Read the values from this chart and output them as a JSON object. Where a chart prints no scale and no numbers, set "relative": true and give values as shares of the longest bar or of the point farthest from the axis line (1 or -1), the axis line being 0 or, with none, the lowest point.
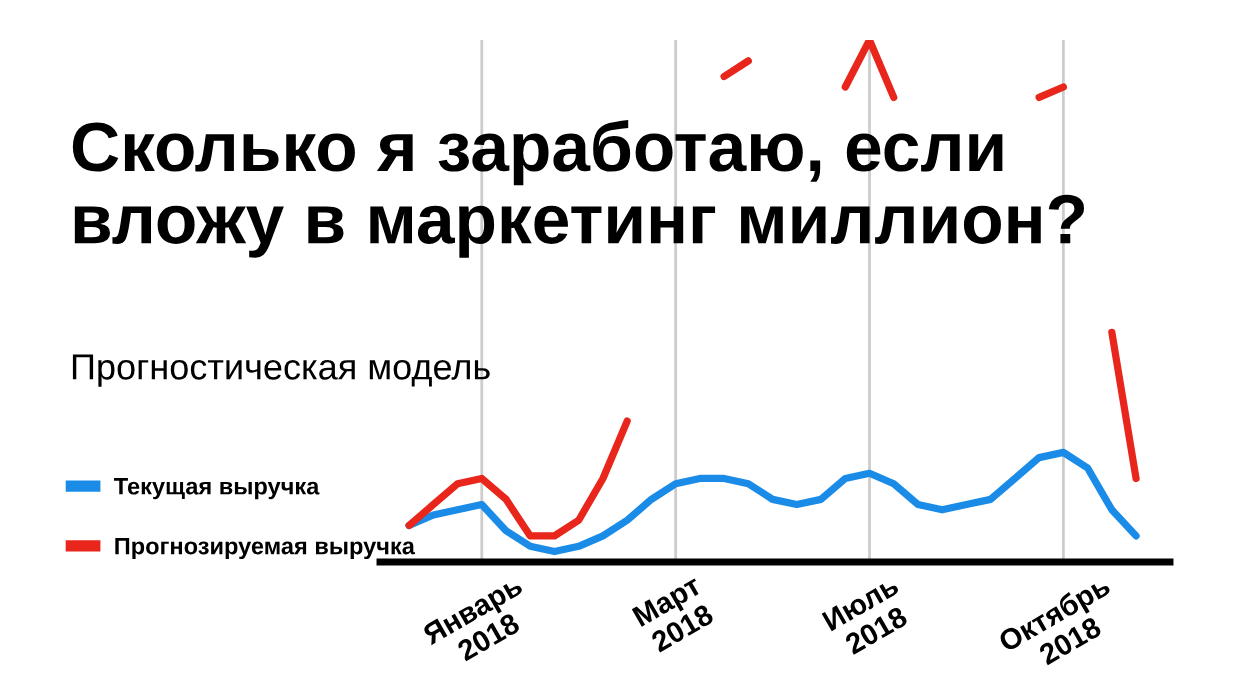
{
  "chart_data": {
    "type": "line",
    "relative": true,
    "title": "Сколько я заработаю, если\nвложу в маркетинг миллион?",
    "subtitle": "Прогностическая модель",
    "categories": [
      null,
      null,
      null,
      "Январь\n2018",
      null,
      null,
      null,
      null,
      null,
      null,
      null,
      "Март\n2018",
      null,
      null,
      null,
      null,
      null,
      null,
      null,
      "Июль\n2018",
      null,
      null,
      null,
      null,
      null,
      null,
      null,
      "Октябрь\n2018",
      null,
      null,
      null
    ],
    "series": [
      {
        "name": "Текущая выручка",
        "color": "#1a8ce8",
        "values": [
          0.07,
          0.09,
          0.1,
          0.11,
          0.06,
          0.03,
          0.02,
          0.03,
          0.05,
          0.08,
          0.12,
          0.15,
          0.16,
          0.16,
          0.15,
          0.12,
          0.11,
          0.12,
          0.16,
          0.17,
          0.15,
          0.11,
          0.1,
          0.11,
          0.12,
          0.16,
          0.2,
          0.21,
          0.18,
          0.1,
          0.05
        ]
      },
      {
        "name": "Прогнозируемая выручка",
        "color": "#e8261c",
        "values": [
          0.07,
          0.11,
          0.15,
          0.16,
          0.12,
          0.05,
          0.05,
          0.08,
          0.16,
          0.27,
          null,
          null,
          null,
          0.93,
          0.96,
          null,
          null,
          null,
          0.91,
          1,
          0.89,
          null,
          null,
          null,
          null,
          null,
          0.89,
          0.91,
          null,
          0.44,
          0.16
        ]
      }
    ],
    "grid": "x",
    "legend": "left",
    "marker": "none",
    "line_style": "solid"
  }
}
